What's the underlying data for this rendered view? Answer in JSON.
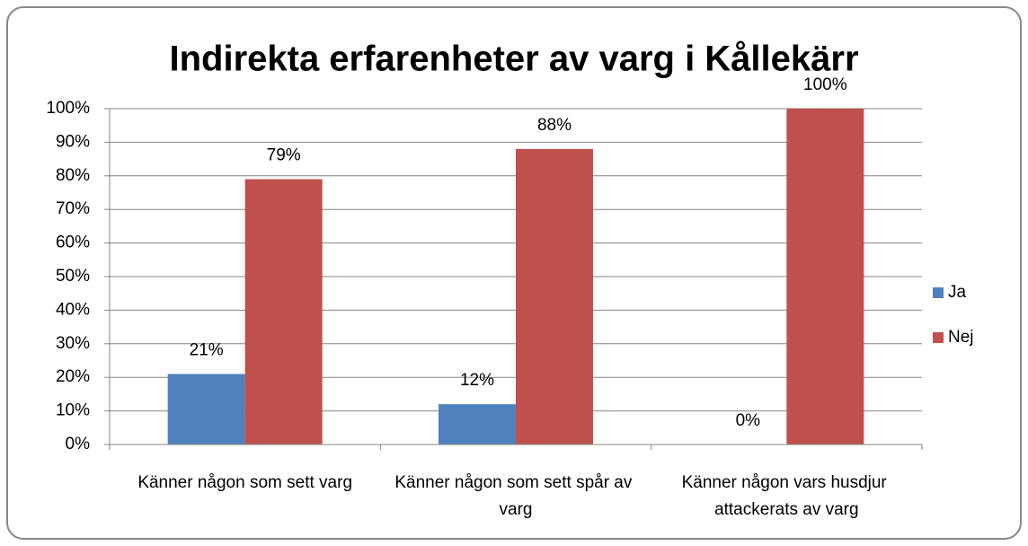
{
  "chart_data": {
    "type": "bar",
    "title": "Indirekta erfarenheter av varg i Kållekärr",
    "categories": [
      "Känner någon som sett varg",
      "Känner någon som sett spår av varg",
      "Känner någon vars husdjur attackerats av varg"
    ],
    "series": [
      {
        "name": "Ja",
        "color": "#4f81bd",
        "values": [
          21,
          12,
          0
        ],
        "value_labels": [
          "21%",
          "12%",
          "0%"
        ]
      },
      {
        "name": "Nej",
        "color": "#c0504d",
        "values": [
          79,
          88,
          100
        ],
        "value_labels": [
          "79%",
          "88%",
          "100%"
        ]
      }
    ],
    "ylim": [
      0,
      100
    ],
    "yticks": [
      {
        "value": 0,
        "label": "0%"
      },
      {
        "value": 10,
        "label": "10%"
      },
      {
        "value": 20,
        "label": "20%"
      },
      {
        "value": 30,
        "label": "30%"
      },
      {
        "value": 40,
        "label": "40%"
      },
      {
        "value": 50,
        "label": "50%"
      },
      {
        "value": 60,
        "label": "60%"
      },
      {
        "value": 70,
        "label": "70%"
      },
      {
        "value": 80,
        "label": "80%"
      },
      {
        "value": 90,
        "label": "90%"
      },
      {
        "value": 100,
        "label": "100%"
      }
    ],
    "grid": true,
    "legend": "right"
  }
}
